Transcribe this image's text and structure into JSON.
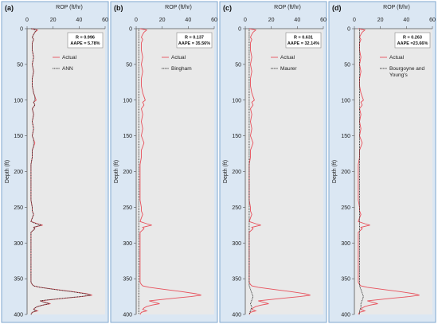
{
  "chart_data": [
    {
      "panel": "(a)",
      "type": "line",
      "xlabel": "ROP (ft/hr)",
      "ylabel": "Depth (ft)",
      "xlim": [
        0,
        60
      ],
      "ylim": [
        0,
        400
      ],
      "y_inverted": true,
      "xticks": [
        0,
        20,
        40,
        60
      ],
      "yticks": [
        0,
        50,
        100,
        150,
        200,
        250,
        300,
        350,
        400
      ],
      "stats": [
        "R = 0.996",
        "AAPE = 5.78%"
      ],
      "legend": {
        "placement": "top-right",
        "entries": [
          "Actual",
          "ANN"
        ]
      },
      "series": [
        {
          "name": "Actual",
          "color": "#e8505b",
          "depth": [
            0,
            2,
            5,
            8,
            12,
            15,
            20,
            30,
            40,
            50,
            60,
            70,
            80,
            90,
            95,
            100,
            103,
            107,
            112,
            120,
            130,
            140,
            150,
            155,
            160,
            165,
            170,
            180,
            190,
            200,
            210,
            220,
            230,
            240,
            250,
            255,
            260,
            265,
            270,
            273,
            275,
            278,
            280,
            285,
            290,
            300,
            310,
            320,
            330,
            340,
            350,
            355,
            358,
            360,
            362,
            365,
            368,
            371,
            373,
            375,
            377,
            379,
            381,
            383,
            385,
            387,
            389,
            391,
            393,
            395,
            397,
            400
          ],
          "rop": [
            3,
            8,
            6,
            5,
            4,
            5,
            4,
            4,
            5,
            4,
            5,
            4,
            4,
            5,
            6,
            7,
            5,
            6,
            4,
            5,
            4,
            5,
            4,
            5,
            6,
            5,
            4,
            4,
            3,
            3,
            3,
            3,
            3,
            3,
            4,
            4,
            5,
            4,
            3,
            8,
            12,
            5,
            6,
            3,
            3,
            3,
            3,
            3,
            3,
            3,
            3,
            3,
            4,
            5,
            10,
            22,
            35,
            46,
            50,
            42,
            30,
            20,
            10,
            14,
            18,
            12,
            8,
            6,
            5,
            8,
            4,
            3
          ]
        },
        {
          "name": "ANN",
          "color": "#2d2d2d",
          "depth": [
            0,
            2,
            5,
            8,
            12,
            15,
            20,
            30,
            40,
            50,
            60,
            70,
            80,
            90,
            95,
            100,
            103,
            107,
            112,
            120,
            130,
            140,
            150,
            155,
            160,
            165,
            170,
            180,
            190,
            200,
            210,
            220,
            230,
            240,
            250,
            255,
            260,
            265,
            270,
            273,
            275,
            278,
            280,
            285,
            290,
            300,
            310,
            320,
            330,
            340,
            350,
            355,
            358,
            360,
            362,
            365,
            368,
            371,
            373,
            375,
            377,
            379,
            381,
            383,
            385,
            387,
            389,
            391,
            393,
            395,
            397,
            400
          ],
          "rop": [
            3,
            7,
            6,
            5,
            4,
            5,
            4,
            4,
            5,
            4,
            5,
            4,
            4,
            5,
            6,
            6,
            5,
            6,
            4,
            5,
            4,
            5,
            4,
            5,
            5,
            5,
            4,
            4,
            3,
            3,
            3,
            3,
            3,
            3,
            4,
            4,
            5,
            4,
            3,
            7,
            11,
            5,
            6,
            3,
            3,
            3,
            3,
            3,
            3,
            3,
            3,
            3,
            4,
            5,
            10,
            21,
            34,
            45,
            49,
            41,
            29,
            19,
            10,
            13,
            17,
            12,
            8,
            6,
            5,
            7,
            4,
            3
          ]
        }
      ]
    },
    {
      "panel": "(b)",
      "type": "line",
      "xlabel": "ROP (ft/hr)",
      "ylabel": "Depth (ft)",
      "xlim": [
        0,
        60
      ],
      "ylim": [
        0,
        400
      ],
      "y_inverted": true,
      "xticks": [
        0,
        20,
        40,
        60
      ],
      "yticks": [
        0,
        50,
        100,
        150,
        200,
        250,
        300,
        350,
        400
      ],
      "stats": [
        "R = 0.137",
        "AAPE = 35.56%"
      ],
      "legend": {
        "placement": "top-right",
        "entries": [
          "Actual",
          "Bingham"
        ]
      },
      "series": [
        {
          "name": "Actual",
          "color": "#e8505b",
          "depth": [
            0,
            2,
            5,
            8,
            12,
            15,
            20,
            30,
            40,
            50,
            60,
            70,
            80,
            90,
            95,
            100,
            103,
            107,
            112,
            120,
            130,
            140,
            150,
            155,
            160,
            165,
            170,
            180,
            190,
            200,
            210,
            220,
            230,
            240,
            250,
            255,
            260,
            265,
            270,
            273,
            275,
            278,
            280,
            285,
            290,
            300,
            310,
            320,
            330,
            340,
            350,
            355,
            358,
            360,
            362,
            365,
            368,
            371,
            373,
            375,
            377,
            379,
            381,
            383,
            385,
            387,
            389,
            391,
            393,
            395,
            397,
            400
          ],
          "rop": [
            3,
            8,
            6,
            5,
            4,
            5,
            4,
            4,
            5,
            4,
            5,
            4,
            4,
            5,
            6,
            7,
            5,
            6,
            4,
            5,
            4,
            5,
            4,
            5,
            6,
            5,
            4,
            4,
            3,
            3,
            3,
            3,
            3,
            3,
            4,
            4,
            5,
            4,
            3,
            8,
            12,
            5,
            6,
            3,
            3,
            3,
            3,
            3,
            3,
            3,
            3,
            3,
            4,
            5,
            10,
            22,
            35,
            46,
            50,
            42,
            30,
            20,
            10,
            14,
            18,
            12,
            8,
            6,
            5,
            8,
            4,
            3
          ]
        },
        {
          "name": "Bingham",
          "color": "#2d2d2d",
          "depth": [
            0,
            20,
            50,
            100,
            150,
            200,
            250,
            300,
            350,
            360,
            370,
            380,
            390,
            400
          ],
          "rop": [
            2,
            2,
            2,
            2,
            2,
            2,
            2,
            2,
            2,
            2,
            2,
            2,
            2,
            2
          ]
        }
      ]
    },
    {
      "panel": "(c)",
      "type": "line",
      "xlabel": "ROP (ft/hr)",
      "ylabel": "Depth (ft)",
      "xlim": [
        0,
        60
      ],
      "ylim": [
        0,
        400
      ],
      "y_inverted": true,
      "xticks": [
        0,
        20,
        40,
        60
      ],
      "yticks": [
        0,
        50,
        100,
        150,
        200,
        250,
        300,
        350,
        400
      ],
      "stats": [
        "R = 0.631",
        "AAPE = 32.14%"
      ],
      "legend": {
        "placement": "top-right",
        "entries": [
          "Actual",
          "Maurer"
        ]
      },
      "series": [
        {
          "name": "Actual",
          "color": "#e8505b",
          "depth": [
            0,
            2,
            5,
            8,
            12,
            15,
            20,
            30,
            40,
            50,
            60,
            70,
            80,
            90,
            95,
            100,
            103,
            107,
            112,
            120,
            130,
            140,
            150,
            155,
            160,
            165,
            170,
            180,
            190,
            200,
            210,
            220,
            230,
            240,
            250,
            255,
            260,
            265,
            270,
            273,
            275,
            278,
            280,
            285,
            290,
            300,
            310,
            320,
            330,
            340,
            350,
            355,
            358,
            360,
            362,
            365,
            368,
            371,
            373,
            375,
            377,
            379,
            381,
            383,
            385,
            387,
            389,
            391,
            393,
            395,
            397,
            400
          ],
          "rop": [
            3,
            8,
            6,
            5,
            4,
            5,
            4,
            4,
            5,
            4,
            5,
            4,
            4,
            5,
            6,
            7,
            5,
            6,
            4,
            5,
            4,
            5,
            4,
            5,
            6,
            5,
            4,
            4,
            3,
            3,
            3,
            3,
            3,
            3,
            4,
            4,
            5,
            4,
            3,
            8,
            12,
            5,
            6,
            3,
            3,
            3,
            3,
            3,
            3,
            3,
            3,
            3,
            4,
            5,
            10,
            22,
            35,
            46,
            50,
            42,
            30,
            20,
            10,
            14,
            18,
            12,
            8,
            6,
            5,
            8,
            4,
            3
          ]
        },
        {
          "name": "Maurer",
          "color": "#2d2d2d",
          "depth": [
            0,
            20,
            50,
            100,
            150,
            200,
            250,
            300,
            350,
            360,
            365,
            370,
            375,
            380,
            385,
            390,
            395,
            400
          ],
          "rop": [
            3,
            3,
            3,
            3,
            3,
            3,
            3,
            3,
            3,
            3,
            4,
            5,
            6,
            5,
            4,
            5,
            4,
            3
          ]
        }
      ]
    },
    {
      "panel": "(d)",
      "type": "line",
      "xlabel": "ROP (ft/hr)",
      "ylabel": "Depth (ft)",
      "xlim": [
        0,
        60
      ],
      "ylim": [
        0,
        400
      ],
      "y_inverted": true,
      "xticks": [
        0,
        20,
        40,
        60
      ],
      "yticks": [
        0,
        50,
        100,
        150,
        200,
        250,
        300,
        350,
        400
      ],
      "stats": [
        "R = 0.263",
        "AAPE =23.66%"
      ],
      "legend": {
        "placement": "top-right",
        "entries": [
          "Actual",
          "Bourgoyne and",
          "Young's"
        ]
      },
      "series": [
        {
          "name": "Actual",
          "color": "#e8505b",
          "depth": [
            0,
            2,
            5,
            8,
            12,
            15,
            20,
            30,
            40,
            50,
            60,
            70,
            80,
            90,
            95,
            100,
            103,
            107,
            112,
            120,
            130,
            140,
            150,
            155,
            160,
            165,
            170,
            180,
            190,
            200,
            210,
            220,
            230,
            240,
            250,
            255,
            260,
            265,
            270,
            273,
            275,
            278,
            280,
            285,
            290,
            300,
            310,
            320,
            330,
            340,
            350,
            355,
            358,
            360,
            362,
            365,
            368,
            371,
            373,
            375,
            377,
            379,
            381,
            383,
            385,
            387,
            389,
            391,
            393,
            395,
            397,
            400
          ],
          "rop": [
            3,
            8,
            6,
            5,
            4,
            5,
            4,
            4,
            5,
            4,
            5,
            4,
            4,
            5,
            6,
            7,
            5,
            6,
            4,
            5,
            4,
            5,
            4,
            5,
            6,
            5,
            4,
            4,
            3,
            3,
            3,
            3,
            3,
            3,
            4,
            4,
            5,
            4,
            3,
            8,
            12,
            5,
            6,
            3,
            3,
            3,
            3,
            3,
            3,
            3,
            3,
            3,
            4,
            5,
            10,
            22,
            35,
            46,
            50,
            42,
            30,
            20,
            10,
            14,
            18,
            12,
            8,
            6,
            5,
            8,
            4,
            3
          ]
        },
        {
          "name": "Bourgoyne and Young's",
          "color": "#2d2d2d",
          "depth": [
            0,
            20,
            50,
            100,
            150,
            200,
            250,
            300,
            350,
            360,
            365,
            370,
            375,
            380,
            385,
            390,
            395,
            400
          ],
          "rop": [
            4,
            4,
            4,
            4,
            4,
            4,
            4,
            4,
            4,
            4,
            5,
            6,
            7,
            6,
            5,
            5,
            4,
            4
          ]
        }
      ]
    }
  ]
}
